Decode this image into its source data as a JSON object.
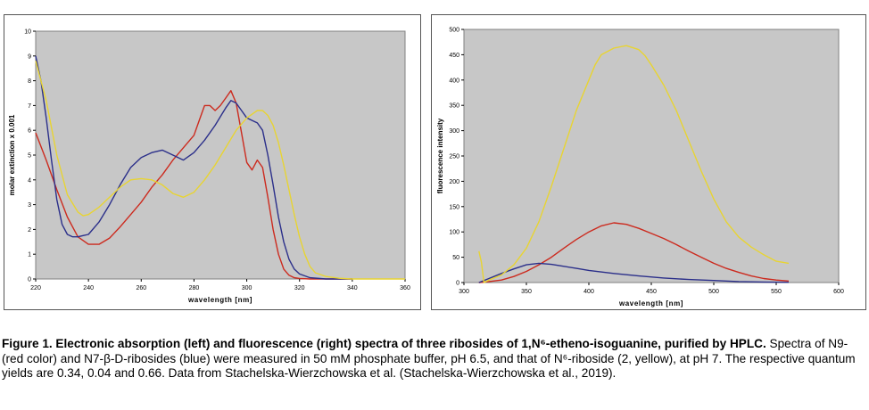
{
  "chart_data": [
    {
      "type": "line",
      "xlabel": "wavelength [nm]",
      "ylabel": "molar extinction x 0.001",
      "xlim": [
        220,
        360
      ],
      "ylim": [
        0,
        10
      ],
      "xticks": [
        220,
        240,
        260,
        280,
        300,
        320,
        340,
        360
      ],
      "yticks": [
        0,
        1,
        2,
        3,
        4,
        5,
        6,
        7,
        8,
        9,
        10
      ],
      "grid": false,
      "series": [
        {
          "color": "#cc2a1e",
          "x": [
            220,
            224,
            228,
            232,
            236,
            240,
            244,
            248,
            252,
            256,
            260,
            264,
            268,
            272,
            276,
            280,
            282,
            284,
            286,
            288,
            290,
            292,
            294,
            296,
            298,
            300,
            302,
            304,
            306,
            308,
            310,
            312,
            314,
            316,
            318,
            320,
            324,
            330,
            340
          ],
          "y": [
            5.9,
            4.8,
            3.6,
            2.5,
            1.7,
            1.4,
            1.4,
            1.65,
            2.1,
            2.6,
            3.1,
            3.7,
            4.2,
            4.8,
            5.3,
            5.8,
            6.4,
            7.0,
            7.0,
            6.8,
            7.0,
            7.3,
            7.6,
            7.1,
            5.9,
            4.7,
            4.4,
            4.8,
            4.5,
            3.3,
            2.0,
            1.0,
            0.4,
            0.15,
            0.05,
            0.02,
            0,
            0,
            0
          ]
        },
        {
          "color": "#2b2f8a",
          "x": [
            220,
            222,
            224,
            226,
            228,
            230,
            232,
            234,
            236,
            238,
            240,
            244,
            248,
            252,
            256,
            260,
            264,
            268,
            272,
            276,
            280,
            284,
            288,
            292,
            294,
            296,
            298,
            300,
            302,
            304,
            306,
            308,
            310,
            312,
            314,
            316,
            318,
            320,
            324,
            330,
            340
          ],
          "y": [
            9.0,
            8.0,
            6.5,
            4.8,
            3.2,
            2.2,
            1.8,
            1.7,
            1.7,
            1.75,
            1.8,
            2.3,
            3.0,
            3.8,
            4.5,
            4.9,
            5.1,
            5.2,
            5.0,
            4.8,
            5.1,
            5.6,
            6.2,
            6.9,
            7.2,
            7.1,
            6.8,
            6.5,
            6.4,
            6.3,
            6.0,
            5.0,
            3.8,
            2.5,
            1.5,
            0.8,
            0.4,
            0.2,
            0.05,
            0,
            0
          ]
        },
        {
          "color": "#e8d432",
          "x": [
            220,
            224,
            228,
            232,
            236,
            238,
            240,
            244,
            248,
            252,
            256,
            260,
            264,
            268,
            272,
            276,
            280,
            284,
            288,
            292,
            296,
            300,
            304,
            306,
            308,
            310,
            312,
            314,
            316,
            318,
            320,
            322,
            324,
            326,
            330,
            335,
            340,
            350,
            360
          ],
          "y": [
            8.8,
            7.2,
            5.0,
            3.4,
            2.7,
            2.55,
            2.6,
            2.9,
            3.3,
            3.7,
            4.0,
            4.05,
            4.0,
            3.8,
            3.45,
            3.3,
            3.5,
            4.0,
            4.6,
            5.3,
            6.0,
            6.5,
            6.8,
            6.8,
            6.6,
            6.2,
            5.5,
            4.6,
            3.6,
            2.6,
            1.7,
            1.0,
            0.5,
            0.25,
            0.1,
            0.03,
            0,
            0,
            0
          ]
        }
      ]
    },
    {
      "type": "line",
      "xlabel": "wavelength [nm]",
      "ylabel": "fluorescence intensity",
      "xlim": [
        300,
        600
      ],
      "ylim": [
        0,
        500
      ],
      "xticks": [
        300,
        350,
        400,
        450,
        500,
        550,
        600
      ],
      "yticks": [
        0,
        50,
        100,
        150,
        200,
        250,
        300,
        350,
        400,
        450,
        500
      ],
      "grid": false,
      "series": [
        {
          "color": "#cc2a1e",
          "x": [
            312,
            320,
            330,
            340,
            350,
            360,
            370,
            380,
            390,
            400,
            410,
            420,
            430,
            440,
            450,
            460,
            470,
            480,
            490,
            500,
            510,
            520,
            530,
            540,
            550,
            560
          ],
          "y": [
            0,
            2,
            5,
            12,
            22,
            35,
            50,
            68,
            85,
            100,
            112,
            118,
            115,
            107,
            97,
            87,
            75,
            62,
            50,
            38,
            28,
            20,
            13,
            8,
            5,
            3
          ]
        },
        {
          "color": "#2b2f8a",
          "x": [
            312,
            320,
            330,
            340,
            350,
            360,
            370,
            380,
            390,
            400,
            420,
            440,
            460,
            480,
            500,
            520,
            540,
            560
          ],
          "y": [
            0,
            8,
            18,
            27,
            35,
            38,
            36,
            32,
            28,
            24,
            18,
            13,
            9,
            6,
            4,
            2,
            1,
            0.5
          ]
        },
        {
          "color": "#e8d432",
          "x": [
            312,
            314,
            316,
            320,
            330,
            340,
            350,
            360,
            370,
            380,
            390,
            400,
            405,
            410,
            420,
            430,
            440,
            445,
            450,
            460,
            470,
            480,
            490,
            500,
            510,
            520,
            530,
            540,
            550,
            560
          ],
          "y": [
            62,
            40,
            0,
            5,
            15,
            35,
            68,
            120,
            190,
            265,
            340,
            400,
            430,
            450,
            463,
            468,
            460,
            448,
            430,
            390,
            340,
            280,
            220,
            165,
            120,
            90,
            70,
            55,
            42,
            38
          ]
        }
      ]
    }
  ],
  "caption": {
    "bold": "Figure 1. Electronic absorption (left) and fluorescence (right) spectra of three ribosides of 1,N⁶-etheno-isoguanine, purified by HPLC.",
    "text": "Spectra of N9- (red color) and N7-β-D-ribosides (blue) were measured in 50 mM phosphate buffer, pH 6.5, and that of N⁶-riboside (2, yellow), at pH 7. The respective quantum yields are 0.34, 0.04 and 0.66. Data from Stachelska-Wierzchowska et al. (Stachelska-Wierzchowska et al., 2019)."
  }
}
